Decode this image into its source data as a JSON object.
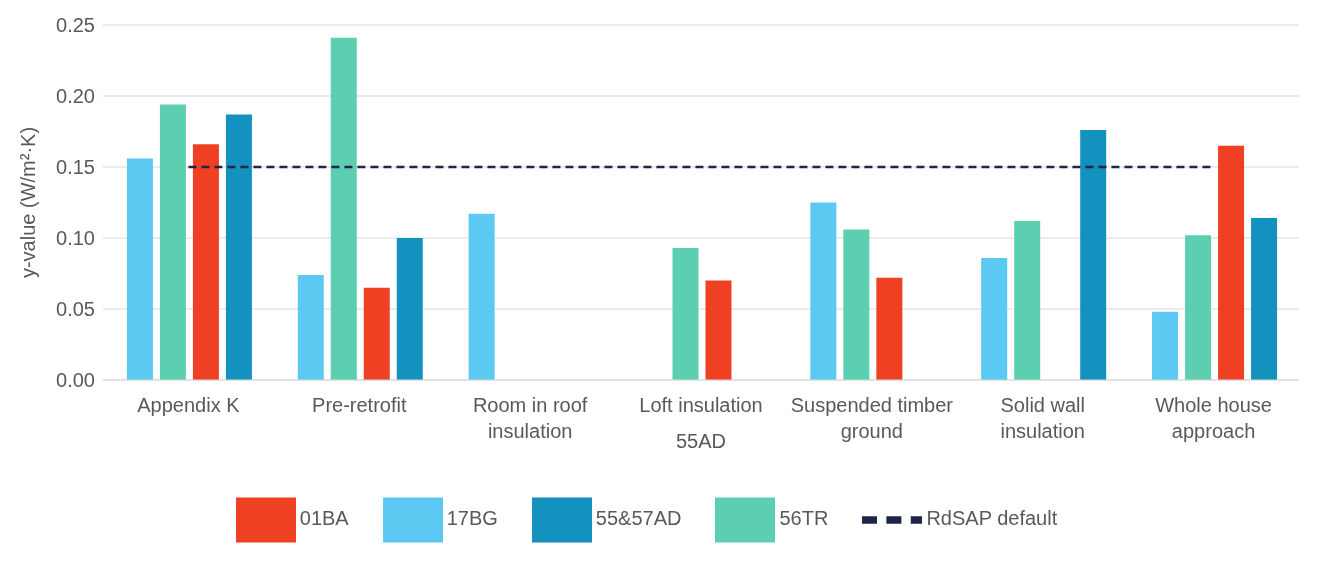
{
  "chart_data": {
    "type": "bar",
    "xlabel": "55AD",
    "ylabel": "y-value (W/m²·K)",
    "categories": [
      "Appendix K",
      "Pre-retrofit",
      "Room in roof insulation",
      "Loft insulation",
      "Suspended timber ground",
      "Solid wall insulation",
      "Whole house approach"
    ],
    "series": [
      {
        "name": "17BG",
        "color": "#5bc9f1",
        "values": [
          0.156,
          0.074,
          0.117,
          null,
          0.125,
          0.086,
          0.048
        ]
      },
      {
        "name": "56TR",
        "color": "#5bcfb0",
        "values": [
          0.194,
          0.241,
          null,
          0.093,
          0.106,
          0.112,
          0.102
        ]
      },
      {
        "name": "01BA",
        "color": "#ef4024",
        "values": [
          0.166,
          0.065,
          null,
          0.07,
          0.072,
          null,
          0.165
        ]
      },
      {
        "name": "55&57AD",
        "color": "#1391bf",
        "values": [
          0.187,
          0.1,
          null,
          null,
          null,
          0.176,
          0.114
        ]
      },
      {
        "name": "RdSAP default",
        "type": "line",
        "color": "#1f2448",
        "values": [
          0.15,
          0.15,
          0.15,
          0.15,
          0.15,
          0.15,
          0.15
        ]
      }
    ],
    "ylim": [
      0,
      0.25
    ],
    "yticks": [
      {
        "value": 0,
        "label": "0.00"
      },
      {
        "value": 0.05,
        "label": "0.05"
      },
      {
        "value": 0.1,
        "label": "0.10"
      },
      {
        "value": 0.15,
        "label": "0.15"
      },
      {
        "value": 0.2,
        "label": "0.20"
      },
      {
        "value": 0.25,
        "label": "0.25"
      }
    ],
    "grid": "y",
    "legend": "bottom",
    "marker": "none",
    "line_style": "dashed"
  }
}
